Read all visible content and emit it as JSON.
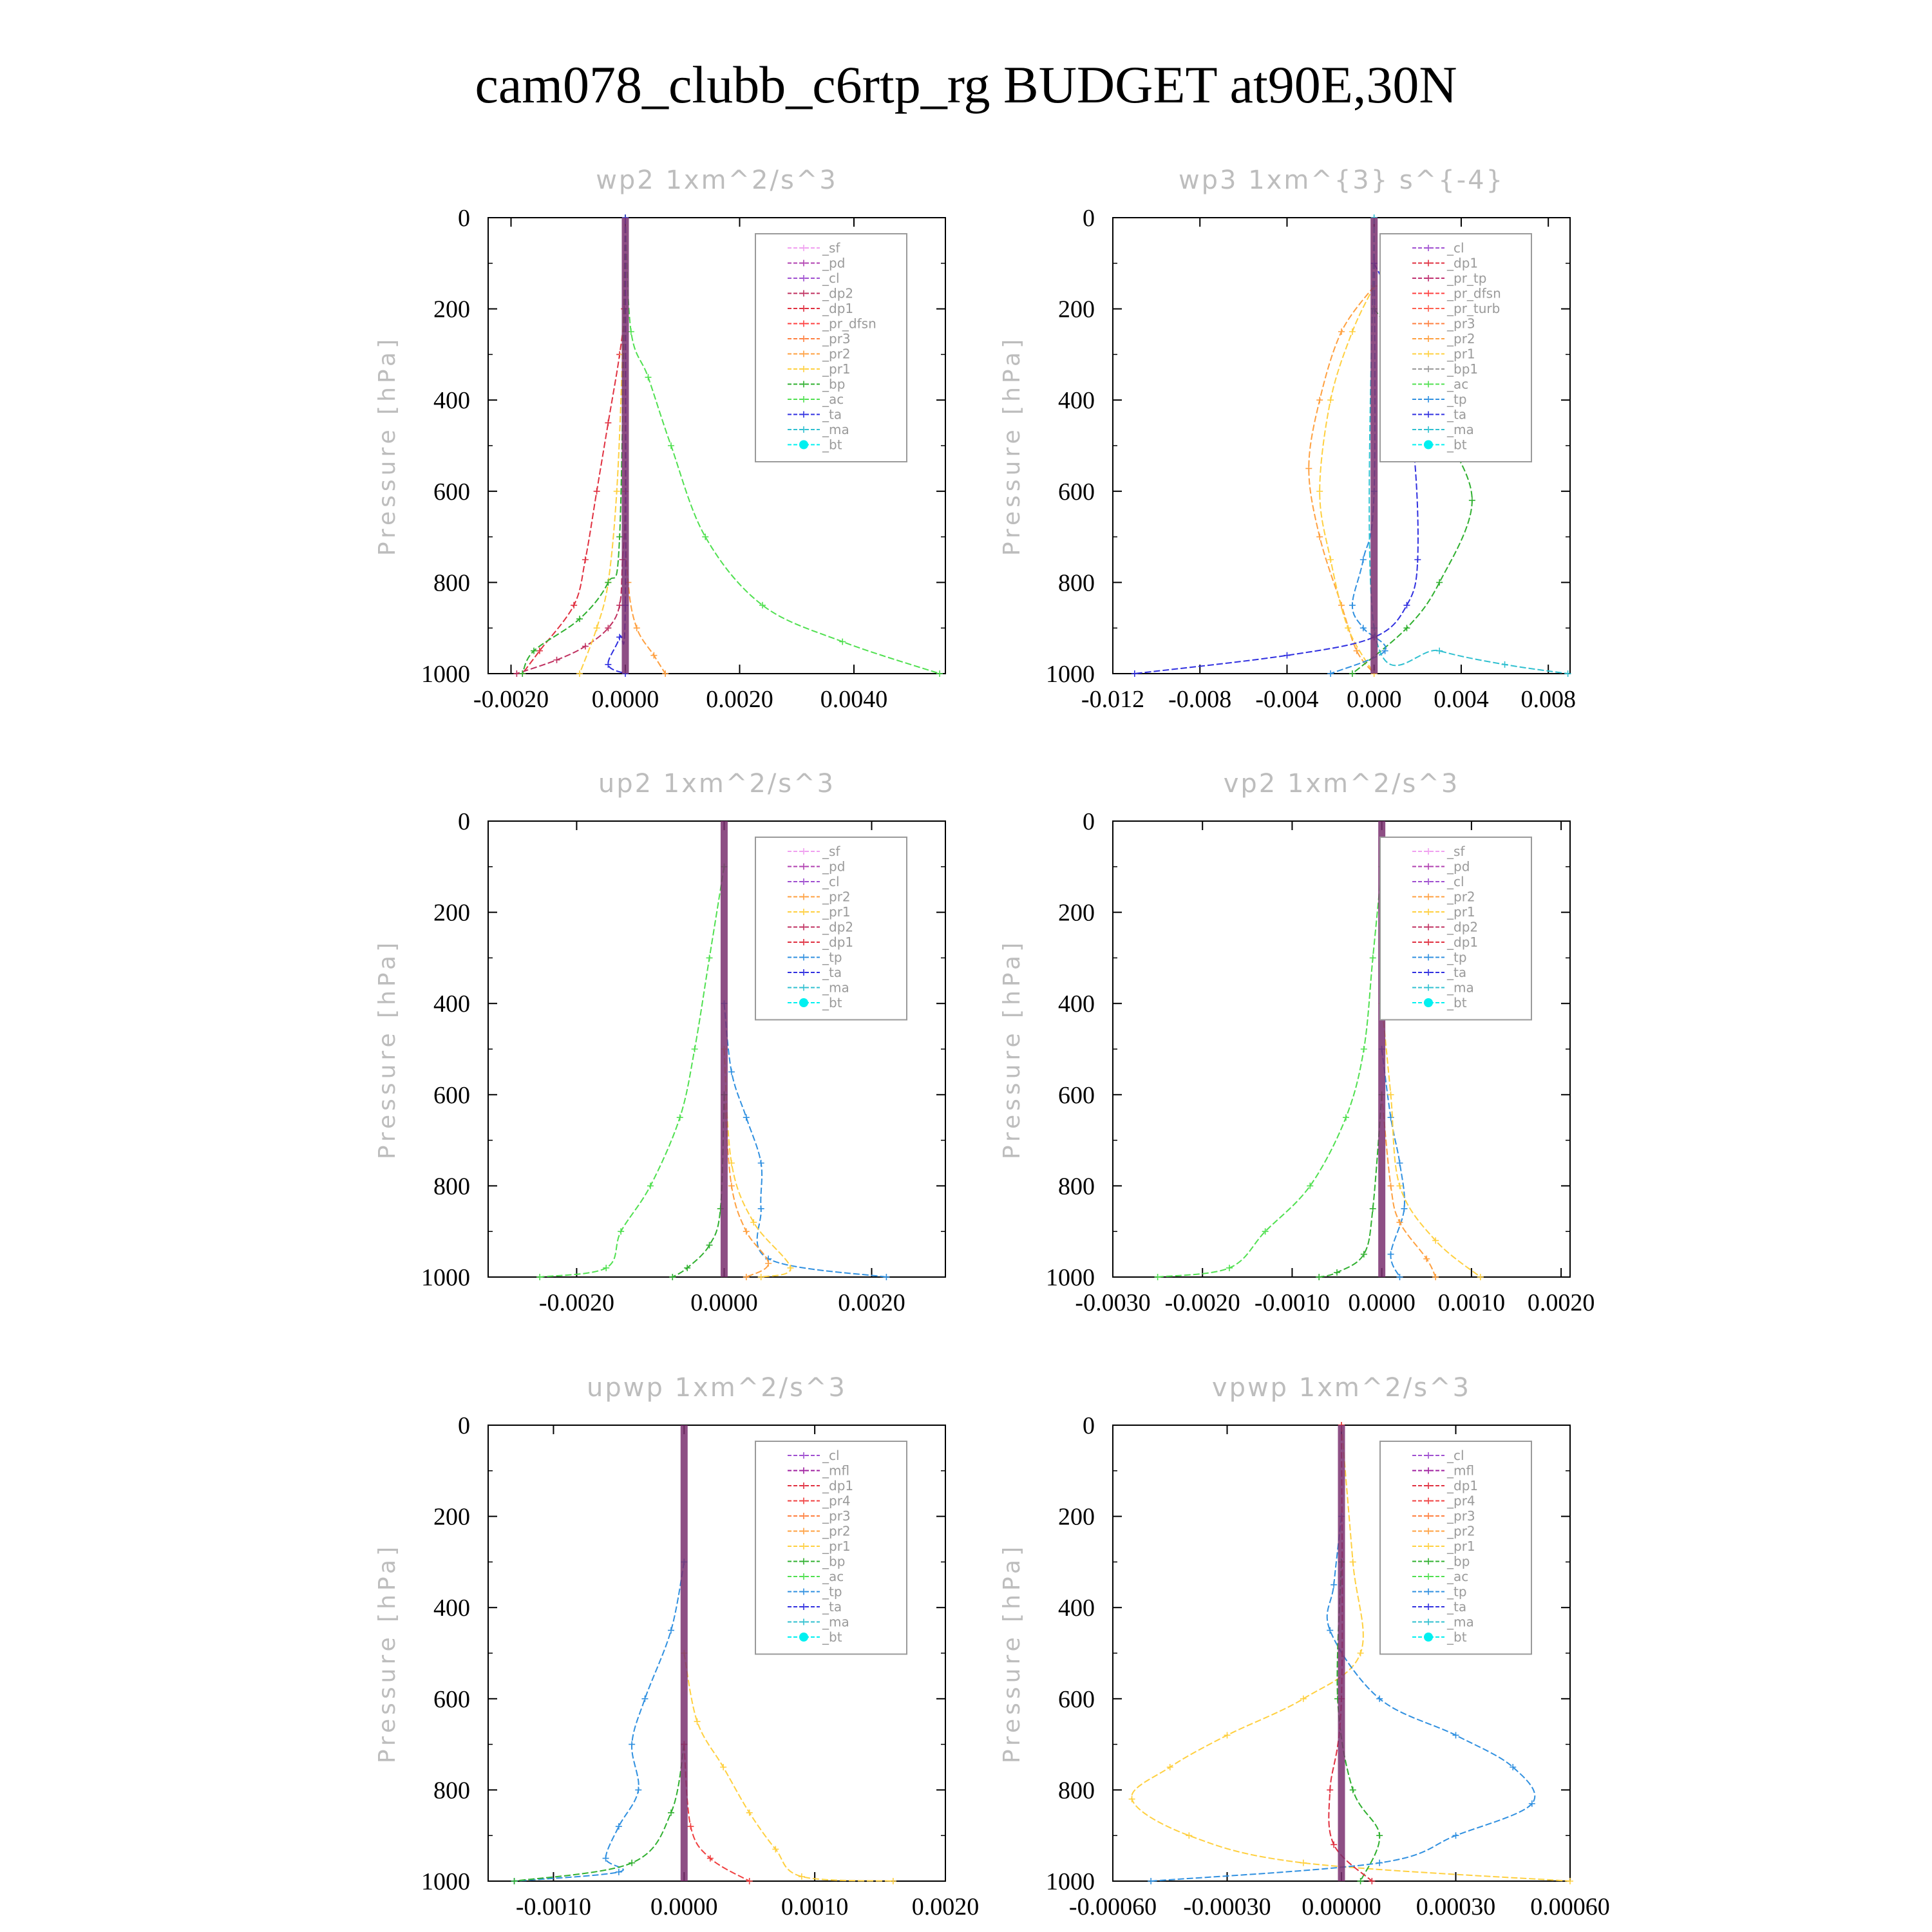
{
  "title": "cam078_clubb_c6rtp_rg  BUDGET at90E,30N",
  "colors": {
    "sf": "#f0a0f0",
    "pd": "#b040b0",
    "cl": "#a050d0",
    "dp2": "#c03060",
    "dp1": "#e03040",
    "pr_dfsn": "#ff4040",
    "pr3": "#ff8040",
    "pr2": "#ffa040",
    "pr1": "#ffd040",
    "bp": "#30b030",
    "ac": "#50e050",
    "tp": "#3090e0",
    "ta": "#3030e0",
    "ma": "#30c0d0",
    "bt": "#00f0f0",
    "mfl": "#a020a0",
    "pr4": "#f04040",
    "pr_tp": "#c03070",
    "pr_turb": "#ff6050"
  },
  "chart_data": [
    {
      "type": "line",
      "title": "wp2   1xm^2/s^3",
      "ylabel": "Pressure [hPa]",
      "ylim": [
        1000,
        0
      ],
      "xlim": [
        -0.0024,
        0.0056
      ],
      "xticks": [
        "-0.0020",
        "0.0000",
        "0.0020",
        "0.0040"
      ],
      "xtick_values": [
        -0.002,
        0,
        0.002,
        0.004
      ],
      "yticks": [
        "0",
        "200",
        "400",
        "600",
        "800",
        "1000"
      ],
      "legend": [
        "_sf",
        "_pd",
        "_cl",
        "_dp2",
        "_dp1",
        "_pr_dfsn",
        "_pr3",
        "_pr2",
        "_pr1",
        "_bp",
        "_ac",
        "_ta",
        "_ma",
        "_bt"
      ],
      "series": [
        {
          "name": "_dp1",
          "color": "#e03040",
          "x": [
            0,
            -2e-05,
            -0.0001,
            -0.0003,
            -0.0005,
            -0.0007,
            -0.0009,
            -0.0015,
            -0.0018
          ],
          "y": [
            0,
            200,
            300,
            450,
            600,
            750,
            850,
            950,
            1000
          ]
        },
        {
          "name": "_dp2",
          "color": "#c03060",
          "x": [
            0,
            0,
            -5e-05,
            -0.0001,
            -0.0003,
            -0.0007,
            -0.0012,
            -0.0019
          ],
          "y": [
            0,
            600,
            750,
            850,
            900,
            940,
            970,
            1000
          ]
        },
        {
          "name": "_pr1",
          "color": "#ffd040",
          "x": [
            0,
            -5e-05,
            -0.00015,
            -0.0003,
            -0.0005,
            -0.0008
          ],
          "y": [
            0,
            300,
            600,
            800,
            900,
            1000
          ]
        },
        {
          "name": "_pr2",
          "color": "#ffa040",
          "x": [
            0,
            0,
            5e-05,
            0.0002,
            0.0005,
            0.0007
          ],
          "y": [
            0,
            600,
            800,
            900,
            960,
            1000
          ]
        },
        {
          "name": "_ac",
          "color": "#50e050",
          "x": [
            0,
            0.0001,
            0.0004,
            0.0008,
            0.0014,
            0.0024,
            0.0038,
            0.0055
          ],
          "y": [
            0,
            250,
            350,
            500,
            700,
            850,
            930,
            1000
          ]
        },
        {
          "name": "_bp",
          "color": "#30b030",
          "x": [
            0,
            -0.0001,
            -0.0003,
            -0.0008,
            -0.0016,
            -0.0018
          ],
          "y": [
            0,
            700,
            800,
            880,
            950,
            1000
          ]
        },
        {
          "name": "_ta",
          "color": "#3030e0",
          "x": [
            0,
            0,
            -0.0001,
            -0.0003,
            0
          ],
          "y": [
            0,
            850,
            920,
            980,
            1000
          ]
        },
        {
          "name": "_bt",
          "color": "#7a3070",
          "x": [
            0,
            0,
            0,
            0
          ],
          "y": [
            0,
            400,
            800,
            1000
          ]
        }
      ]
    },
    {
      "type": "line",
      "title": "wp3   1xm^{3} s^{-4}",
      "ylabel": "Pressure [hPa]",
      "ylim": [
        1000,
        0
      ],
      "xlim": [
        -0.012,
        0.009
      ],
      "xticks": [
        "-0.012",
        "-0.008",
        "-0.004",
        "0.000",
        "0.004",
        "0.008"
      ],
      "xtick_values": [
        -0.012,
        -0.008,
        -0.004,
        0,
        0.004,
        0.008
      ],
      "yticks": [
        "0",
        "200",
        "400",
        "600",
        "800",
        "1000"
      ],
      "legend": [
        "_cl",
        "_dp1",
        "_pr_tp",
        "_pr_dfsn",
        "_pr_turb",
        "_pr3",
        "_pr2",
        "_pr1",
        "_bp1",
        "_ac",
        "_tp",
        "_ta",
        "_ma",
        "_bt"
      ],
      "series": [
        {
          "name": "_pr2",
          "color": "#ffa040",
          "x": [
            0,
            -0.0015,
            -0.0025,
            -0.003,
            -0.0025,
            -0.0015,
            -0.0008,
            0
          ],
          "y": [
            150,
            250,
            400,
            550,
            700,
            850,
            950,
            1000
          ]
        },
        {
          "name": "_pr1",
          "color": "#ffd040",
          "x": [
            0,
            -0.001,
            -0.002,
            -0.0025,
            -0.002,
            -0.0012,
            0
          ],
          "y": [
            150,
            250,
            400,
            600,
            750,
            900,
            1000
          ]
        },
        {
          "name": "_bp1",
          "color": "#30b030",
          "x": [
            0,
            0.0015,
            0.003,
            0.0045,
            0.003,
            0.0015,
            -0.001
          ],
          "y": [
            200,
            300,
            450,
            620,
            800,
            900,
            1000
          ]
        },
        {
          "name": "_tp",
          "color": "#3090e0",
          "x": [
            0,
            0,
            -0.0005,
            -0.001,
            -0.0005,
            0.0005,
            -0.002
          ],
          "y": [
            0,
            600,
            750,
            850,
            900,
            950,
            1000
          ]
        },
        {
          "name": "_ta",
          "color": "#3030e0",
          "x": [
            0,
            0.0008,
            0.0018,
            0.002,
            0.0015,
            0,
            -0.004,
            -0.011
          ],
          "y": [
            100,
            200,
            500,
            750,
            850,
            920,
            960,
            1000
          ]
        },
        {
          "name": "_ma",
          "color": "#30c0d0",
          "x": [
            0,
            0,
            0.003,
            0.006,
            0.0089
          ],
          "y": [
            0,
            900,
            950,
            980,
            1000
          ]
        },
        {
          "name": "_bt",
          "color": "#7a3070",
          "x": [
            0,
            0,
            0,
            0
          ],
          "y": [
            0,
            400,
            800,
            1000
          ]
        }
      ]
    },
    {
      "type": "line",
      "title": "up2   1xm^2/s^3",
      "ylabel": "Pressure [hPa]",
      "ylim": [
        1000,
        0
      ],
      "xlim": [
        -0.0032,
        0.003
      ],
      "xticks": [
        "-0.0020",
        "0.0000",
        "0.0020"
      ],
      "xtick_values": [
        -0.002,
        0,
        0.002
      ],
      "yticks": [
        "0",
        "200",
        "400",
        "600",
        "800",
        "1000"
      ],
      "legend": [
        "_sf",
        "_pd",
        "_cl",
        "_pr2",
        "_pr1",
        "_dp2",
        "_dp1",
        "_tp",
        "_ta",
        "_ma",
        "_bt"
      ],
      "series": [
        {
          "name": "_dp1",
          "color": "#50e050",
          "x": [
            0,
            -0.0002,
            -0.0004,
            -0.0006,
            -0.001,
            -0.0014,
            -0.0016,
            -0.0025
          ],
          "y": [
            100,
            300,
            500,
            650,
            800,
            900,
            980,
            1000
          ]
        },
        {
          "name": "_tp",
          "color": "#3090e0",
          "x": [
            0,
            0.0001,
            0.0003,
            0.0005,
            0.0005,
            0.0006,
            0.0022
          ],
          "y": [
            400,
            550,
            650,
            750,
            850,
            960,
            1000
          ]
        },
        {
          "name": "_pr1",
          "color": "#ffd040",
          "x": [
            0,
            0.0001,
            0.0004,
            0.0009,
            0.0005
          ],
          "y": [
            500,
            750,
            880,
            980,
            1000
          ]
        },
        {
          "name": "_pr2",
          "color": "#ffa040",
          "x": [
            0,
            0.0001,
            0.0003,
            0.0006,
            0.0003
          ],
          "y": [
            600,
            800,
            900,
            970,
            1000
          ]
        },
        {
          "name": "_dp2",
          "color": "#30b030",
          "x": [
            0,
            -5e-05,
            -0.0002,
            -0.0005,
            -0.0007
          ],
          "y": [
            600,
            850,
            930,
            980,
            1000
          ]
        },
        {
          "name": "_bt",
          "color": "#7a3070",
          "x": [
            0,
            0,
            0,
            0
          ],
          "y": [
            0,
            400,
            800,
            1000
          ]
        }
      ]
    },
    {
      "type": "line",
      "title": "vp2   1xm^2/s^3",
      "ylabel": "Pressure [hPa]",
      "ylim": [
        1000,
        0
      ],
      "xlim": [
        -0.003,
        0.0021
      ],
      "xticks": [
        "-0.0030",
        "-0.0020",
        "-0.0010",
        "0.0000",
        "0.0010",
        "0.0020"
      ],
      "xtick_values": [
        -0.003,
        -0.002,
        -0.001,
        0,
        0.001,
        0.002
      ],
      "yticks": [
        "0",
        "200",
        "400",
        "600",
        "800",
        "1000"
      ],
      "legend": [
        "_sf",
        "_pd",
        "_cl",
        "_pr2",
        "_pr1",
        "_dp2",
        "_dp1",
        "_tp",
        "_ta",
        "_ma",
        "_bt"
      ],
      "series": [
        {
          "name": "_dp1",
          "color": "#50e050",
          "x": [
            0,
            -0.0001,
            -0.0002,
            -0.0004,
            -0.0008,
            -0.0013,
            -0.0017,
            -0.0025
          ],
          "y": [
            100,
            300,
            500,
            650,
            800,
            900,
            980,
            1000
          ]
        },
        {
          "name": "_tp",
          "color": "#3090e0",
          "x": [
            0,
            0.0001,
            0.0002,
            0.00025,
            0.0001,
            0.0002
          ],
          "y": [
            500,
            650,
            750,
            850,
            950,
            1000
          ]
        },
        {
          "name": "_pr1",
          "color": "#ffd040",
          "x": [
            0,
            0.0001,
            0.0002,
            0.0006,
            0.0011
          ],
          "y": [
            400,
            600,
            800,
            920,
            1000
          ]
        },
        {
          "name": "_pr2",
          "color": "#ffa040",
          "x": [
            0,
            0.0001,
            0.0002,
            0.0005,
            0.0006
          ],
          "y": [
            600,
            800,
            880,
            960,
            1000
          ]
        },
        {
          "name": "_dp2",
          "color": "#30b030",
          "x": [
            0,
            -0.0001,
            -0.0002,
            -0.0005,
            -0.0007
          ],
          "y": [
            600,
            850,
            950,
            990,
            1000
          ]
        },
        {
          "name": "_bt",
          "color": "#7a3070",
          "x": [
            0,
            0,
            0,
            0
          ],
          "y": [
            0,
            400,
            800,
            1000
          ]
        }
      ]
    },
    {
      "type": "line",
      "title": "upwp   1xm^2/s^3",
      "ylabel": "Pressure [hPa]",
      "ylim": [
        1000,
        0
      ],
      "xlim": [
        -0.0015,
        0.002
      ],
      "xticks": [
        "-0.0010",
        "0.0000",
        "0.0010",
        "0.0020"
      ],
      "xtick_values": [
        -0.001,
        0,
        0.001,
        0.002
      ],
      "yticks": [
        "0",
        "200",
        "400",
        "600",
        "800",
        "1000"
      ],
      "legend": [
        "_cl",
        "_mfl",
        "_dp1",
        "_pr4",
        "_pr3",
        "_pr2",
        "_pr1",
        "_bp",
        "_ac",
        "_tp",
        "_ta",
        "_ma",
        "_bt"
      ],
      "series": [
        {
          "name": "_tp",
          "color": "#3090e0",
          "x": [
            0,
            -0.0001,
            -0.0003,
            -0.0004,
            -0.00035,
            -0.0005,
            -0.0006,
            -0.0005,
            -0.0013
          ],
          "y": [
            300,
            450,
            600,
            700,
            800,
            880,
            950,
            980,
            1000
          ]
        },
        {
          "name": "_pr1",
          "color": "#ffd040",
          "x": [
            0,
            0.0001,
            0.0003,
            0.0005,
            0.0007,
            0.0009,
            0.0016
          ],
          "y": [
            500,
            650,
            750,
            850,
            930,
            990,
            1000
          ]
        },
        {
          "name": "_bp",
          "color": "#30b030",
          "x": [
            0,
            -0.0001,
            -0.0004,
            -0.0013
          ],
          "y": [
            700,
            850,
            960,
            1000
          ]
        },
        {
          "name": "_pr4",
          "color": "#f04040",
          "x": [
            0,
            5e-05,
            0.0002,
            0.0005
          ],
          "y": [
            700,
            880,
            950,
            1000
          ]
        },
        {
          "name": "_bt",
          "color": "#7a3070",
          "x": [
            0,
            0,
            0,
            0
          ],
          "y": [
            0,
            400,
            800,
            1000
          ]
        }
      ]
    },
    {
      "type": "line",
      "title": "vpwp   1xm^2/s^3",
      "ylabel": "Pressure [hPa]",
      "ylim": [
        1000,
        0
      ],
      "xlim": [
        -0.0006,
        0.0006
      ],
      "xticks": [
        "-0.00060",
        "-0.00030",
        "0.00000",
        "0.00030",
        "0.00060"
      ],
      "xtick_values": [
        -0.0006,
        -0.0003,
        0,
        0.0003,
        0.0006
      ],
      "yticks": [
        "0",
        "200",
        "400",
        "600",
        "800",
        "1000"
      ],
      "legend": [
        "_cl",
        "_mfl",
        "_dp1",
        "_pr4",
        "_pr3",
        "_pr2",
        "_pr1",
        "_bp",
        "_ac",
        "_tp",
        "_ta",
        "_ma",
        "_bt"
      ],
      "series": [
        {
          "name": "_pr1",
          "color": "#ffd040",
          "x": [
            0,
            3e-05,
            5e-05,
            -0.0001,
            -0.0003,
            -0.00045,
            -0.00055,
            -0.0004,
            -0.0001,
            0.0006
          ],
          "y": [
            0,
            300,
            500,
            600,
            680,
            750,
            820,
            900,
            960,
            1000
          ]
        },
        {
          "name": "_tp",
          "color": "#3090e0",
          "x": [
            0,
            -2e-05,
            -3e-05,
            0.0001,
            0.0003,
            0.00045,
            0.0005,
            0.0003,
            0.0001,
            -0.0005
          ],
          "y": [
            200,
            350,
            450,
            600,
            680,
            750,
            830,
            900,
            960,
            1000
          ]
        },
        {
          "name": "_bp",
          "color": "#30b030",
          "x": [
            0,
            -1e-05,
            3e-05,
            0.0001,
            5e-05
          ],
          "y": [
            300,
            600,
            800,
            900,
            1000
          ]
        },
        {
          "name": "_dp1",
          "color": "#e03040",
          "x": [
            0,
            0,
            -3e-05,
            -2e-05,
            8e-05
          ],
          "y": [
            0,
            600,
            800,
            920,
            1000
          ]
        },
        {
          "name": "_bt",
          "color": "#7a3070",
          "x": [
            0,
            0,
            0,
            0
          ],
          "y": [
            0,
            400,
            800,
            1000
          ]
        }
      ]
    }
  ]
}
